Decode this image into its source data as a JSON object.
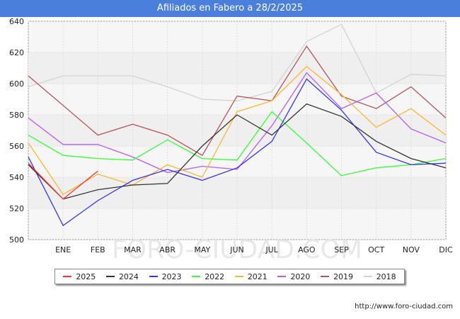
{
  "header": {
    "title": "Afiliados en Fabero a 28/2/2025"
  },
  "footer": {
    "url": "http://www.foro-ciudad.com"
  },
  "watermark": "FORO-CIUDAD.COM",
  "chart_data": {
    "type": "line",
    "title": "Afiliados en Fabero a 28/2/2025",
    "categories": [
      "",
      "ENE",
      "FEB",
      "MAR",
      "ABR",
      "MAY",
      "JUN",
      "JUL",
      "AGO",
      "SEP",
      "OCT",
      "NOV",
      "DIC"
    ],
    "ylim": [
      500,
      640
    ],
    "yticks": [
      500,
      520,
      540,
      560,
      580,
      600,
      620,
      640
    ],
    "grid": true,
    "legend_position": "bottom",
    "series": [
      {
        "name": "2025",
        "color": "#ff3333",
        "values": [
          549,
          526,
          544,
          null,
          null,
          null,
          null,
          null,
          null,
          null,
          null,
          null,
          null
        ]
      },
      {
        "name": "2024",
        "color": "#333333",
        "values": [
          548,
          526,
          532,
          535,
          536,
          560,
          580,
          567,
          587,
          579,
          563,
          552,
          546
        ]
      },
      {
        "name": "2023",
        "color": "#3333ff",
        "values": [
          553,
          509,
          525,
          538,
          545,
          538,
          546,
          563,
          603,
          583,
          556,
          548,
          549
        ]
      },
      {
        "name": "2022",
        "color": "#33ff33",
        "values": [
          567,
          554,
          552,
          551,
          564,
          552,
          551,
          582,
          562,
          541,
          546,
          548,
          552
        ]
      },
      {
        "name": "2021",
        "color": "#ffb533",
        "values": [
          562,
          529,
          542,
          535,
          548,
          540,
          582,
          589,
          611,
          593,
          572,
          584,
          567
        ]
      },
      {
        "name": "2020",
        "color": "#b55cf5",
        "values": [
          578,
          561,
          561,
          553,
          543,
          547,
          545,
          573,
          607,
          584,
          594,
          571,
          562
        ]
      },
      {
        "name": "2019",
        "color": "#b5545c",
        "values": [
          605,
          586,
          567,
          574,
          567,
          554,
          592,
          589,
          624,
          592,
          584,
          598,
          578
        ]
      },
      {
        "name": "2018",
        "color": "#d3d3d3",
        "values": [
          598,
          605,
          605,
          605,
          598,
          590,
          589,
          595,
          627,
          638,
          594,
          606,
          605
        ]
      }
    ]
  }
}
